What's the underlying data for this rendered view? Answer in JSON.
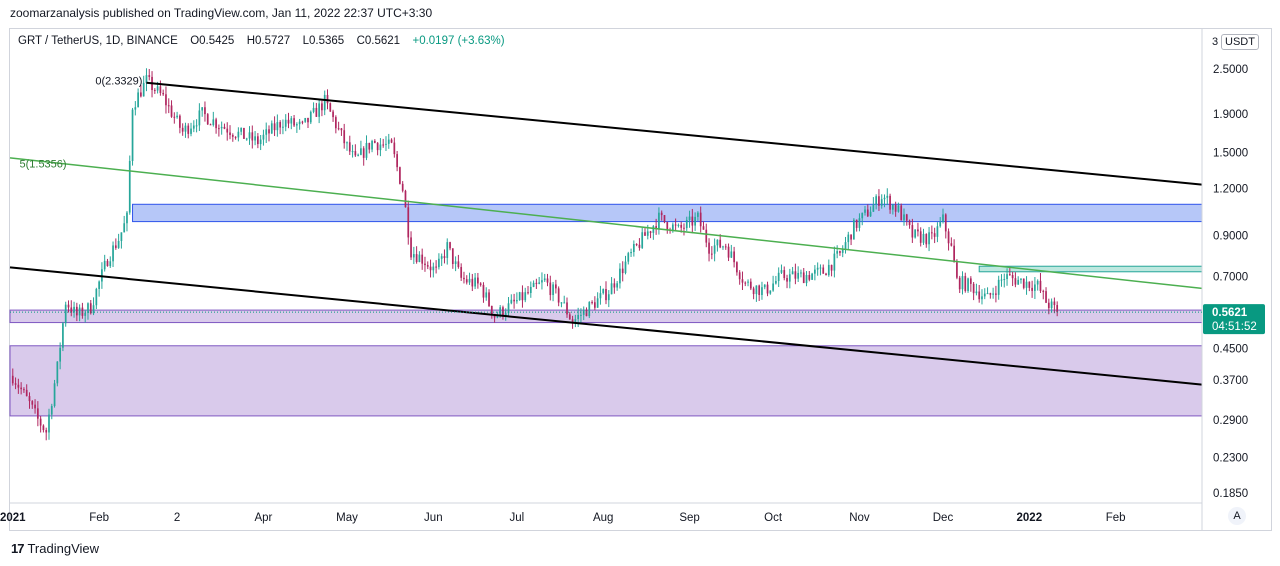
{
  "header": {
    "publisher_line": "zoomarzanalysis published on TradingView.com, Jan 11, 2022 22:37 UTC+3:30"
  },
  "symbol": {
    "name": "GRT / TetherUS, 1D, BINANCE",
    "open": "O0.5425",
    "high": "H0.5727",
    "low": "L0.5365",
    "close": "C0.5621",
    "change": "+0.0197 (+3.63%)"
  },
  "price_scale": {
    "currency_badge": "USDT",
    "top_partial_label": "3",
    "last_price": "0.5621",
    "countdown": "04:51:52",
    "auto_label": "A"
  },
  "footer": {
    "logo_glyph": "17",
    "brand": "TradingView"
  },
  "colors": {
    "up": "#26a69a",
    "down": "#b0265f",
    "last_price_bg": "#089981",
    "blue_zone": "#a9bdf7",
    "purple_zone": "#d2c1e8",
    "teal_zone": "#b2e4d9",
    "green_line": "#4caf50",
    "trend_line": "#000000"
  },
  "chart_data": {
    "type": "candlestick",
    "scale": "log",
    "ylim": [
      0.175,
      3.2
    ],
    "y_ticks": [
      "2.5000",
      "1.9000",
      "1.5000",
      "1.2000",
      "0.9000",
      "0.7000",
      "0.4500",
      "0.3700",
      "0.2900",
      "0.2300",
      "0.1850"
    ],
    "y_tick_values": [
      2.5,
      1.9,
      1.5,
      1.2,
      0.9,
      0.7,
      0.45,
      0.37,
      0.29,
      0.23,
      0.185
    ],
    "x_range": [
      "2020-12-31",
      "2022-03-04"
    ],
    "x_ticks": [
      {
        "label": "2021",
        "date": "2021-01-01"
      },
      {
        "label": "Feb",
        "date": "2021-02-01"
      },
      {
        "label": "2",
        "date": "2021-03-01"
      },
      {
        "label": "Apr",
        "date": "2021-04-01"
      },
      {
        "label": "May",
        "date": "2021-05-01"
      },
      {
        "label": "Jun",
        "date": "2021-06-01"
      },
      {
        "label": "Jul",
        "date": "2021-07-01"
      },
      {
        "label": "Aug",
        "date": "2021-08-01"
      },
      {
        "label": "Sep",
        "date": "2021-09-01"
      },
      {
        "label": "Oct",
        "date": "2021-10-01"
      },
      {
        "label": "Nov",
        "date": "2021-11-01"
      },
      {
        "label": "Dec",
        "date": "2021-12-01"
      },
      {
        "label": "2022",
        "date": "2022-01-01"
      },
      {
        "label": "Feb",
        "date": "2022-02-01"
      }
    ],
    "price_path": [
      [
        "2021-01-01",
        0.38
      ],
      [
        "2021-01-07",
        0.32
      ],
      [
        "2021-01-10",
        0.29
      ],
      [
        "2021-01-13",
        0.27
      ],
      [
        "2021-01-17",
        0.4
      ],
      [
        "2021-01-20",
        0.6
      ],
      [
        "2021-01-24",
        0.55
      ],
      [
        "2021-01-29",
        0.58
      ],
      [
        "2021-02-04",
        0.78
      ],
      [
        "2021-02-08",
        0.88
      ],
      [
        "2021-02-11",
        1.0
      ],
      [
        "2021-02-13",
        2.0
      ],
      [
        "2021-02-18",
        2.33
      ],
      [
        "2021-02-24",
        2.1
      ],
      [
        "2021-03-03",
        1.7
      ],
      [
        "2021-03-10",
        1.9
      ],
      [
        "2021-03-16",
        1.78
      ],
      [
        "2021-03-23",
        1.68
      ],
      [
        "2021-03-30",
        1.6
      ],
      [
        "2021-04-08",
        1.82
      ],
      [
        "2021-04-15",
        1.75
      ],
      [
        "2021-04-23",
        2.05
      ],
      [
        "2021-04-30",
        1.6
      ],
      [
        "2021-05-04",
        1.42
      ],
      [
        "2021-05-10",
        1.6
      ],
      [
        "2021-05-17",
        1.55
      ],
      [
        "2021-05-21",
        1.2
      ],
      [
        "2021-05-24",
        0.82
      ],
      [
        "2021-05-28",
        0.78
      ],
      [
        "2021-06-02",
        0.72
      ],
      [
        "2021-06-06",
        0.84
      ],
      [
        "2021-06-11",
        0.69
      ],
      [
        "2021-06-18",
        0.66
      ],
      [
        "2021-06-23",
        0.55
      ],
      [
        "2021-06-28",
        0.58
      ],
      [
        "2021-07-05",
        0.63
      ],
      [
        "2021-07-11",
        0.68
      ],
      [
        "2021-07-17",
        0.6
      ],
      [
        "2021-07-21",
        0.53
      ],
      [
        "2021-07-27",
        0.58
      ],
      [
        "2021-08-03",
        0.64
      ],
      [
        "2021-08-10",
        0.78
      ],
      [
        "2021-08-16",
        0.9
      ],
      [
        "2021-08-21",
        1.0
      ],
      [
        "2021-08-28",
        0.93
      ],
      [
        "2021-09-04",
        1.0
      ],
      [
        "2021-09-08",
        0.84
      ],
      [
        "2021-09-14",
        0.85
      ],
      [
        "2021-09-21",
        0.67
      ],
      [
        "2021-09-28",
        0.64
      ],
      [
        "2021-10-04",
        0.7
      ],
      [
        "2021-10-11",
        0.7
      ],
      [
        "2021-10-19",
        0.72
      ],
      [
        "2021-10-25",
        0.8
      ],
      [
        "2021-10-30",
        0.95
      ],
      [
        "2021-11-04",
        1.04
      ],
      [
        "2021-11-09",
        1.15
      ],
      [
        "2021-11-15",
        1.05
      ],
      [
        "2021-11-20",
        0.9
      ],
      [
        "2021-11-27",
        0.88
      ],
      [
        "2021-12-01",
        0.99
      ],
      [
        "2021-12-04",
        0.83
      ],
      [
        "2021-12-06",
        0.68
      ],
      [
        "2021-12-11",
        0.66
      ],
      [
        "2021-12-17",
        0.61
      ],
      [
        "2021-12-23",
        0.7
      ],
      [
        "2021-12-29",
        0.68
      ],
      [
        "2022-01-04",
        0.66
      ],
      [
        "2022-01-07",
        0.6
      ],
      [
        "2022-01-11",
        0.5621
      ]
    ],
    "last_close": 0.5621,
    "zones": [
      {
        "color": "blue",
        "from": "2021-02-13",
        "to": "2022-03-04",
        "low": 0.98,
        "high": 1.09
      },
      {
        "color": "teal",
        "from": "2021-12-14",
        "to": "2022-03-04",
        "low": 0.72,
        "high": 0.745
      },
      {
        "color": "purple",
        "from": "2020-12-31",
        "to": "2022-03-04",
        "low": 0.527,
        "high": 0.569
      },
      {
        "color": "purple",
        "from": "2020-12-31",
        "to": "2022-03-04",
        "low": 0.297,
        "high": 0.457
      }
    ],
    "lines": [
      {
        "kind": "trend",
        "color": "black",
        "from": [
          "2021-02-18",
          2.3
        ],
        "to": [
          "2022-03-04",
          1.23
        ]
      },
      {
        "kind": "trend",
        "color": "black",
        "from": [
          "2020-12-31",
          0.74
        ],
        "to": [
          "2022-03-04",
          0.36
        ]
      },
      {
        "kind": "fib",
        "color": "green",
        "from": [
          "2020-12-31",
          1.45
        ],
        "to": [
          "2022-03-04",
          0.65
        ]
      }
    ],
    "annotations": [
      {
        "text": "0(2.3329)",
        "at": [
          "2021-02-18",
          2.33
        ]
      },
      {
        "text": "5(1.5356)",
        "at": [
          "2021-01-07",
          1.4
        ]
      }
    ]
  }
}
